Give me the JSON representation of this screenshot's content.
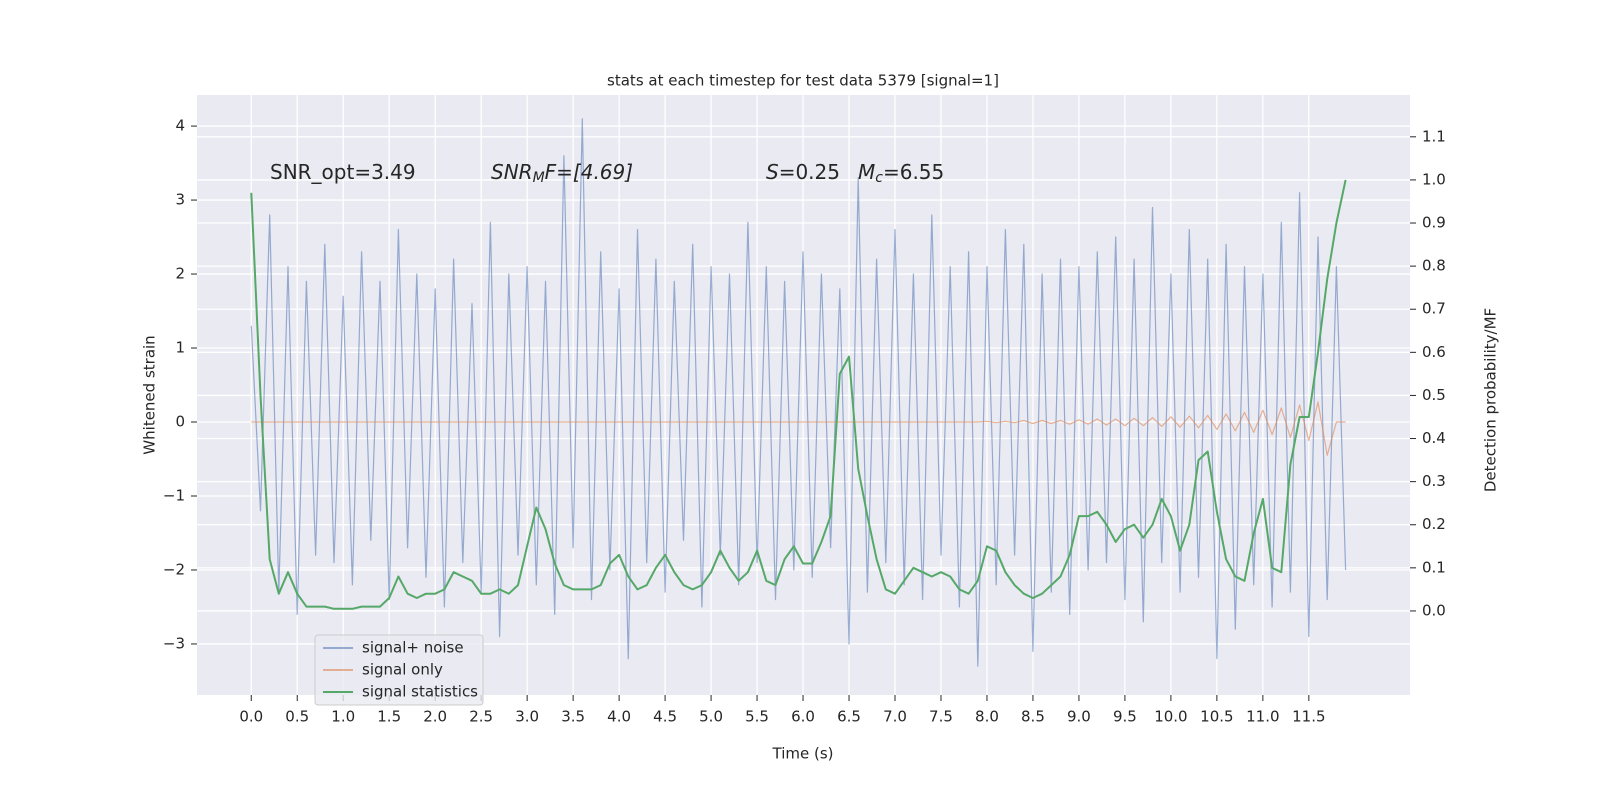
{
  "chart_data": {
    "type": "line",
    "title": "stats at each timestep for test data 5379 [signal=1]",
    "xlabel": "Time (s)",
    "ylabel": "Whitened strain",
    "y2label": "Detection probability/MF",
    "annotations": [
      [
        "SNR_opt=3.49"
      ],
      [
        "SNR",
        "M",
        "F=[4.69]"
      ],
      [
        "S",
        "=0.25"
      ],
      [
        "M",
        "c",
        "=6.55"
      ]
    ],
    "x": [
      0,
      0.1,
      0.2,
      0.3,
      0.4,
      0.5,
      0.6,
      0.7,
      0.8,
      0.9,
      1,
      1.1,
      1.2,
      1.3,
      1.4,
      1.5,
      1.6,
      1.7,
      1.8,
      1.9,
      2,
      2.1,
      2.2,
      2.3,
      2.4,
      2.5,
      2.6,
      2.7,
      2.8,
      2.9,
      3,
      3.1,
      3.2,
      3.3,
      3.4,
      3.5,
      3.6,
      3.7,
      3.8,
      3.9,
      4,
      4.1,
      4.2,
      4.3,
      4.4,
      4.5,
      4.6,
      4.7,
      4.8,
      4.9,
      5,
      5.1,
      5.2,
      5.3,
      5.4,
      5.5,
      5.6,
      5.7,
      5.8,
      5.9,
      6,
      6.1,
      6.2,
      6.3,
      6.4,
      6.5,
      6.6,
      6.7,
      6.8,
      6.9,
      7,
      7.1,
      7.2,
      7.3,
      7.4,
      7.5,
      7.6,
      7.7,
      7.8,
      7.9,
      8,
      8.1,
      8.2,
      8.3,
      8.4,
      8.5,
      8.6,
      8.7,
      8.8,
      8.9,
      9,
      9.1,
      9.2,
      9.3,
      9.4,
      9.5,
      9.6,
      9.7,
      9.8,
      9.9,
      10,
      10.1,
      10.2,
      10.3,
      10.4,
      10.5,
      10.6,
      10.7,
      10.8,
      10.9,
      11,
      11.1,
      11.2,
      11.3,
      11.4,
      11.5,
      11.6,
      11.7,
      11.8,
      11.9
    ],
    "series": [
      {
        "name": "signal+ noise",
        "color": "#4c72b0",
        "values": [
          1.3,
          -1.2,
          2.8,
          -2.3,
          2.1,
          -2.6,
          1.9,
          -1.8,
          2.4,
          -1.9,
          1.7,
          -2.2,
          2.3,
          -1.6,
          1.9,
          -2.4,
          2.6,
          -1.7,
          2.0,
          -2.1,
          1.8,
          -2.5,
          2.2,
          -1.9,
          1.6,
          -2.3,
          2.7,
          -2.9,
          2.0,
          -1.8,
          2.1,
          -2.2,
          1.9,
          -2.6,
          3.6,
          -1.7,
          4.1,
          -2.4,
          2.3,
          -2.0,
          1.8,
          -3.2,
          2.6,
          -1.9,
          2.2,
          -2.3,
          1.9,
          -1.6,
          2.4,
          -2.5,
          2.1,
          -1.8,
          2.0,
          -2.2,
          2.7,
          -1.9,
          2.1,
          -2.4,
          1.9,
          -2.0,
          2.3,
          -2.1,
          2.0,
          -1.7,
          1.8,
          -3.0,
          3.3,
          -2.3,
          2.2,
          -1.9,
          2.6,
          -2.2,
          2.0,
          -2.4,
          2.8,
          -1.8,
          2.1,
          -2.5,
          2.3,
          -3.3,
          2.1,
          -2.2,
          2.6,
          -1.8,
          2.4,
          -3.1,
          2.0,
          -2.3,
          2.2,
          -2.6,
          2.1,
          -2.0,
          2.3,
          -1.9,
          2.5,
          -2.4,
          2.2,
          -2.7,
          2.9,
          -1.9,
          2.0,
          -2.3,
          2.6,
          -2.1,
          2.2,
          -3.2,
          2.4,
          -2.8,
          2.1,
          -2.2,
          2.0,
          -2.5,
          2.7,
          -2.3,
          3.1,
          -2.9,
          2.5,
          -2.4,
          2.1,
          -2.0
        ]
      },
      {
        "name": "signal only",
        "color": "#dd8452",
        "values": [
          0,
          0,
          0,
          0,
          0,
          0,
          0,
          0,
          0,
          0,
          0,
          0,
          0,
          0,
          0,
          0,
          0,
          0,
          0,
          0,
          0,
          0,
          0,
          0,
          0,
          0,
          0,
          0,
          0,
          0,
          0,
          0,
          0,
          0,
          0,
          0,
          0,
          0,
          0,
          0,
          0,
          0,
          0,
          0,
          0,
          0,
          0,
          0,
          0,
          0,
          0,
          0,
          0,
          0,
          0,
          0,
          0,
          0,
          0,
          0,
          0,
          0,
          0,
          0,
          0,
          0,
          0,
          0,
          0,
          0,
          0,
          0,
          0,
          0,
          0,
          0,
          0,
          0,
          0,
          0,
          0.01,
          -0.01,
          0.01,
          -0.01,
          0.02,
          -0.02,
          0.02,
          -0.02,
          0.02,
          -0.03,
          0.03,
          -0.03,
          0.04,
          -0.04,
          0.04,
          -0.05,
          0.05,
          -0.05,
          0.06,
          -0.06,
          0.07,
          -0.07,
          0.08,
          -0.08,
          0.09,
          -0.1,
          0.11,
          -0.12,
          0.13,
          -0.14,
          0.16,
          -0.17,
          0.19,
          -0.21,
          0.23,
          -0.25,
          0.27,
          -0.45,
          0,
          0
        ]
      },
      {
        "name": "signal statistics",
        "color": "#55a868",
        "axis": "y2",
        "values": [
          0.97,
          0.5,
          0.12,
          0.04,
          0.09,
          0.04,
          0.01,
          0.01,
          0.01,
          0.005,
          0.005,
          0.005,
          0.01,
          0.01,
          0.01,
          0.03,
          0.08,
          0.04,
          0.03,
          0.04,
          0.04,
          0.05,
          0.09,
          0.08,
          0.07,
          0.04,
          0.04,
          0.05,
          0.04,
          0.06,
          0.15,
          0.24,
          0.19,
          0.11,
          0.06,
          0.05,
          0.05,
          0.05,
          0.06,
          0.11,
          0.13,
          0.08,
          0.05,
          0.06,
          0.1,
          0.13,
          0.09,
          0.06,
          0.05,
          0.06,
          0.09,
          0.14,
          0.1,
          0.07,
          0.09,
          0.14,
          0.07,
          0.06,
          0.12,
          0.15,
          0.11,
          0.11,
          0.16,
          0.22,
          0.55,
          0.59,
          0.33,
          0.22,
          0.12,
          0.05,
          0.04,
          0.07,
          0.1,
          0.09,
          0.08,
          0.09,
          0.08,
          0.05,
          0.04,
          0.07,
          0.15,
          0.14,
          0.09,
          0.06,
          0.04,
          0.03,
          0.04,
          0.06,
          0.08,
          0.13,
          0.22,
          0.22,
          0.23,
          0.2,
          0.16,
          0.19,
          0.2,
          0.17,
          0.2,
          0.26,
          0.22,
          0.14,
          0.2,
          0.35,
          0.37,
          0.23,
          0.12,
          0.08,
          0.07,
          0.18,
          0.26,
          0.1,
          0.09,
          0.34,
          0.45,
          0.45,
          0.6,
          0.77,
          0.9,
          1.0
        ]
      }
    ],
    "xlim": [
      -0.59,
      12.6
    ],
    "xticks": [
      {
        "value": 0,
        "label": "0.0"
      },
      0.5,
      {
        "value": 1,
        "label": "1.0"
      },
      1.5,
      {
        "value": 2,
        "label": "2.0"
      },
      2.5,
      {
        "value": 3,
        "label": "3.0"
      },
      3.5,
      {
        "value": 4,
        "label": "4.0"
      },
      4.5,
      {
        "value": 5,
        "label": "5.0"
      },
      5.5,
      {
        "value": 6,
        "label": "6.0"
      },
      6.5,
      {
        "value": 7,
        "label": "7.0"
      },
      7.5,
      {
        "value": 8,
        "label": "8.0"
      },
      8.5,
      {
        "value": 9,
        "label": "9.0"
      },
      9.5,
      {
        "value": 10,
        "label": "10.0"
      },
      10.5,
      {
        "value": 11,
        "label": "11.0"
      },
      11.5
    ],
    "ylim": [
      -3.69,
      4.42
    ],
    "yticks": [
      {
        "value": -3,
        "label": "−3"
      },
      {
        "value": -2,
        "label": "−2"
      },
      {
        "value": -1,
        "label": "−1"
      },
      0,
      1,
      2,
      3,
      4
    ],
    "y2lim": [
      -0.195,
      1.197
    ],
    "y2ticks": [
      {
        "value": 0,
        "label": "0.0"
      },
      0.1,
      0.2,
      0.3,
      0.4,
      0.5,
      0.6,
      0.7,
      0.8,
      0.9,
      {
        "value": 1,
        "label": "1.0"
      },
      1.1
    ],
    "grid": true,
    "legend": "lower left"
  }
}
